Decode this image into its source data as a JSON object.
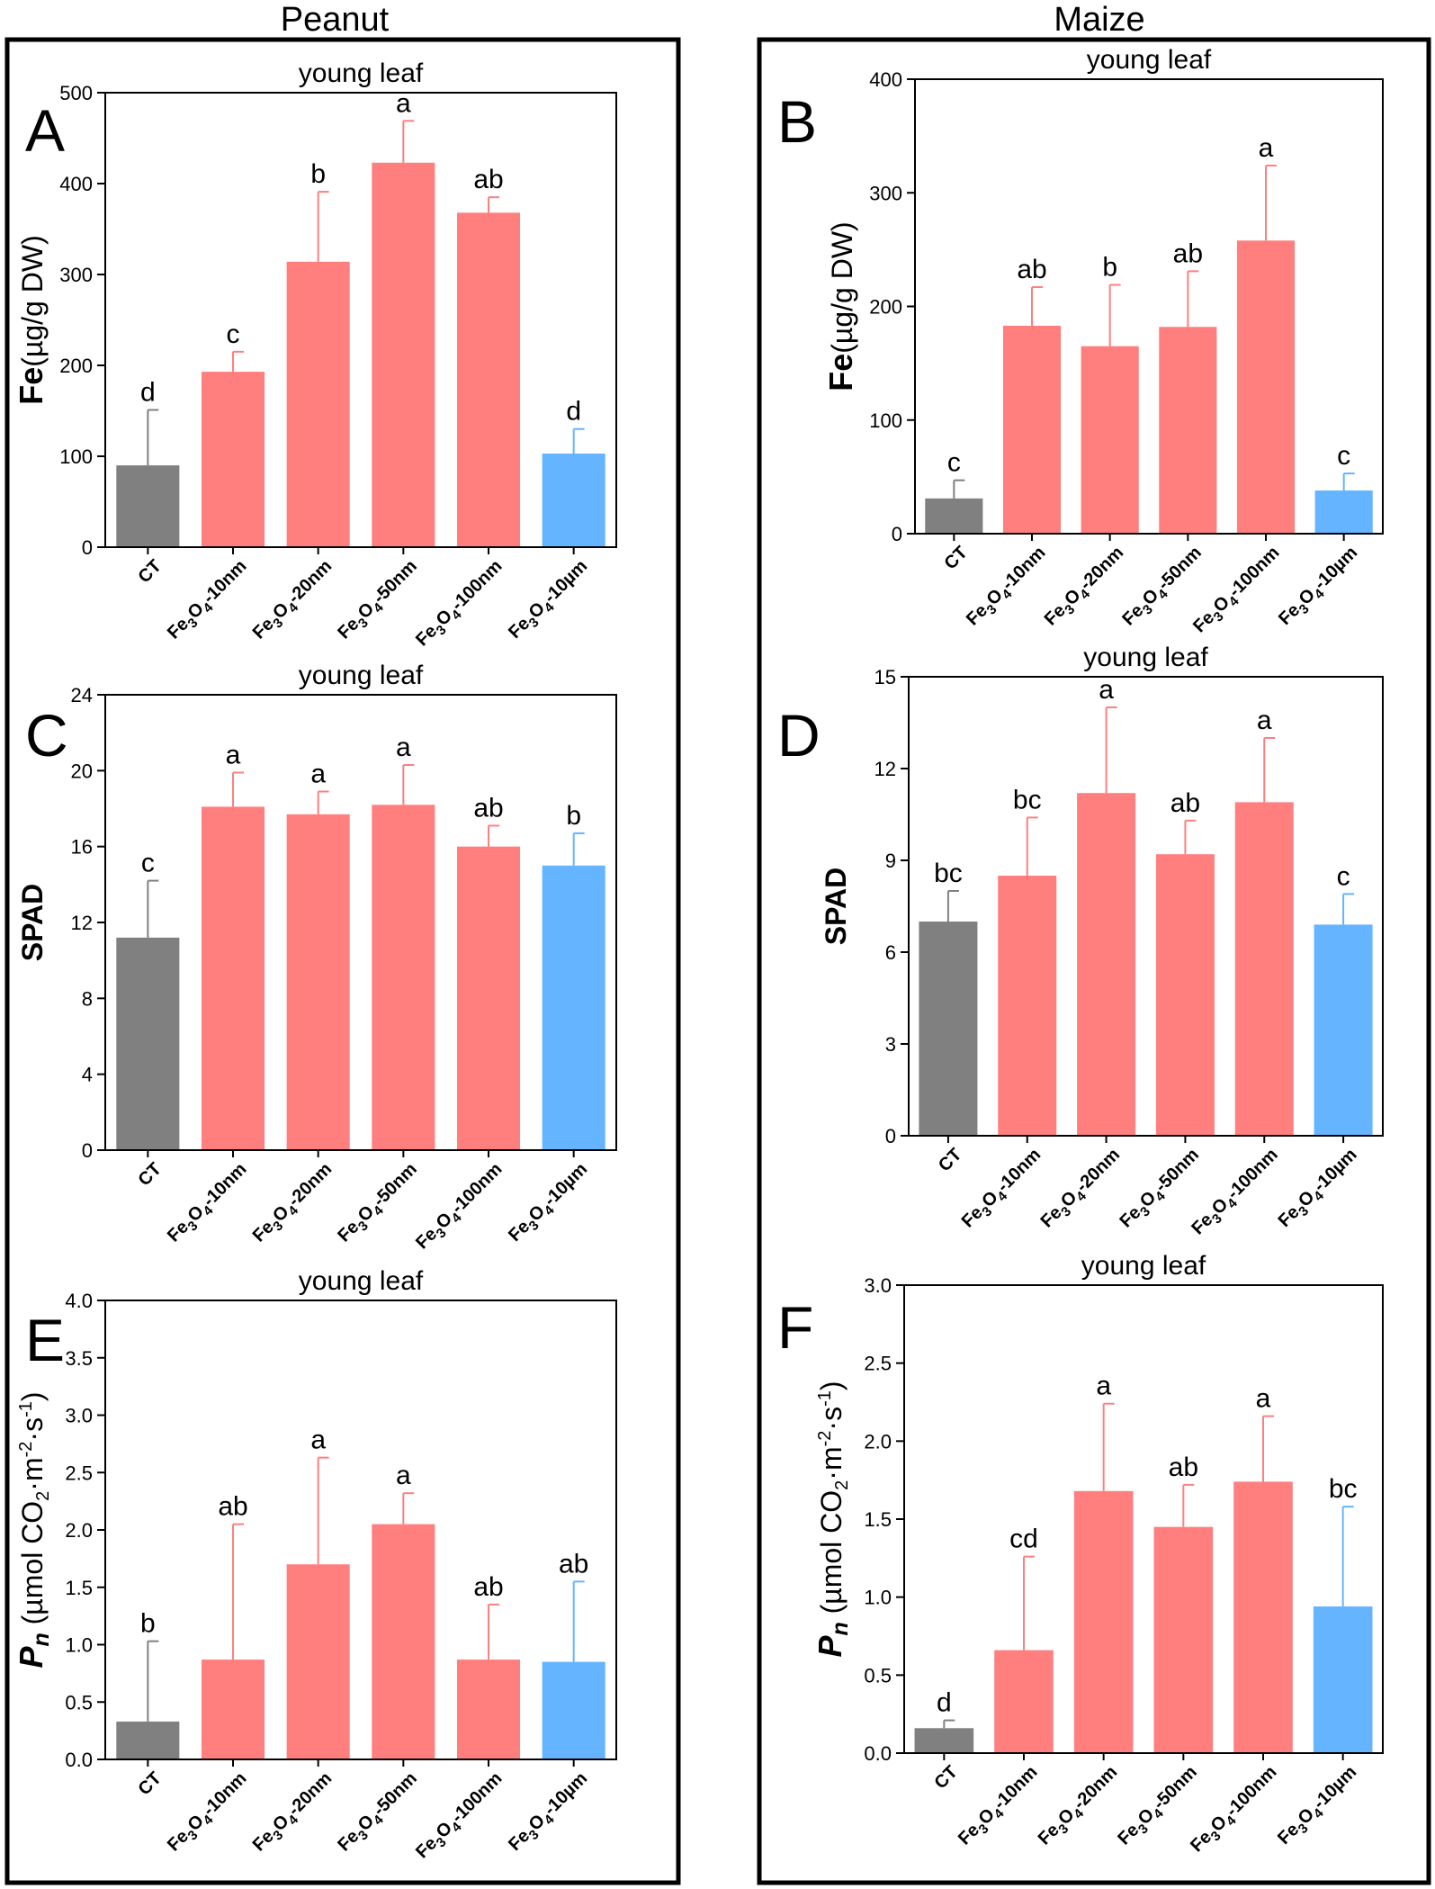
{
  "columns": [
    "Peanut",
    "Maize"
  ],
  "colors": {
    "control": "#808080",
    "nano": "#FF7F7F",
    "micro": "#64B4FF"
  },
  "chart_data": [
    {
      "panel": "A",
      "type": "bar",
      "title": "young leaf",
      "ylabel": "Fe(µg/g DW)",
      "categories": [
        "CT",
        "Fe3O4-10nm",
        "Fe3O4-20nm",
        "Fe3O4-50nm",
        "Fe3O4-100nm",
        "Fe3O4-10µm"
      ],
      "values": [
        90,
        193,
        314,
        423,
        368,
        103
      ],
      "errors": [
        61,
        22,
        77,
        46,
        17,
        27
      ],
      "letters": [
        "d",
        "c",
        "b",
        "a",
        "ab",
        "d"
      ],
      "ylim": [
        0,
        500
      ],
      "yticks": [
        0,
        100,
        200,
        300,
        400,
        500
      ],
      "tick_decimals": 0
    },
    {
      "panel": "B",
      "type": "bar",
      "title": "young leaf",
      "ylabel": "Fe(µg/g DW)",
      "categories": [
        "CT",
        "Fe3O4-10nm",
        "Fe3O4-20nm",
        "Fe3O4-50nm",
        "Fe3O4-100nm",
        "Fe3O4-10µm"
      ],
      "values": [
        31,
        183,
        165,
        182,
        258,
        38
      ],
      "errors": [
        16,
        34,
        54,
        49,
        66,
        15
      ],
      "letters": [
        "c",
        "ab",
        "b",
        "ab",
        "a",
        "c"
      ],
      "ylim": [
        0,
        400
      ],
      "yticks": [
        0,
        100,
        200,
        300,
        400
      ],
      "tick_decimals": 0
    },
    {
      "panel": "C",
      "type": "bar",
      "title": "young leaf",
      "ylabel": "SPAD",
      "categories": [
        "CT",
        "Fe3O4-10nm",
        "Fe3O4-20nm",
        "Fe3O4-50nm",
        "Fe3O4-100nm",
        "Fe3O4-10µm"
      ],
      "values": [
        11.2,
        18.1,
        17.7,
        18.2,
        16.0,
        15.0
      ],
      "errors": [
        3.0,
        1.8,
        1.2,
        2.1,
        1.1,
        1.7
      ],
      "letters": [
        "c",
        "a",
        "a",
        "a",
        "ab",
        "b"
      ],
      "ylim": [
        0,
        24
      ],
      "yticks": [
        0,
        4,
        8,
        12,
        16,
        20,
        24
      ],
      "tick_decimals": 0
    },
    {
      "panel": "D",
      "type": "bar",
      "title": "young leaf",
      "ylabel": "SPAD",
      "categories": [
        "CT",
        "Fe3O4-10nm",
        "Fe3O4-20nm",
        "Fe3O4-50nm",
        "Fe3O4-100nm",
        "Fe3O4-10µm"
      ],
      "values": [
        7.0,
        8.5,
        11.2,
        9.2,
        10.9,
        6.9
      ],
      "errors": [
        1.0,
        1.9,
        2.8,
        1.1,
        2.1,
        1.0
      ],
      "letters": [
        "bc",
        "bc",
        "a",
        "ab",
        "a",
        "c"
      ],
      "ylim": [
        0,
        15
      ],
      "yticks": [
        0,
        3,
        6,
        9,
        12,
        15
      ],
      "tick_decimals": 0
    },
    {
      "panel": "E",
      "type": "bar",
      "title": "young leaf",
      "ylabel": "Pn (µmol CO2·m-2·s-1)",
      "categories": [
        "CT",
        "Fe3O4-10nm",
        "Fe3O4-20nm",
        "Fe3O4-50nm",
        "Fe3O4-100nm",
        "Fe3O4-10µm"
      ],
      "values": [
        0.33,
        0.87,
        1.7,
        2.05,
        0.87,
        0.85
      ],
      "errors": [
        0.7,
        1.18,
        0.93,
        0.27,
        0.48,
        0.7
      ],
      "letters": [
        "b",
        "ab",
        "a",
        "a",
        "ab",
        "ab"
      ],
      "ylim": [
        0,
        4.0
      ],
      "yticks": [
        0,
        0.5,
        1.0,
        1.5,
        2.0,
        2.5,
        3.0,
        3.5,
        4.0
      ],
      "tick_decimals": 1
    },
    {
      "panel": "F",
      "type": "bar",
      "title": "young leaf",
      "ylabel": "Pn (µmol CO2·m-2·s-1)",
      "categories": [
        "CT",
        "Fe3O4-10nm",
        "Fe3O4-20nm",
        "Fe3O4-50nm",
        "Fe3O4-100nm",
        "Fe3O4-10µm"
      ],
      "values": [
        0.16,
        0.66,
        1.68,
        1.45,
        1.74,
        0.94
      ],
      "errors": [
        0.05,
        0.6,
        0.56,
        0.27,
        0.42,
        0.64
      ],
      "letters": [
        "d",
        "cd",
        "a",
        "ab",
        "a",
        "bc"
      ],
      "ylim": [
        0,
        3.0
      ],
      "yticks": [
        0,
        0.5,
        1.0,
        1.5,
        2.0,
        2.5,
        3.0
      ],
      "tick_decimals": 1
    }
  ]
}
